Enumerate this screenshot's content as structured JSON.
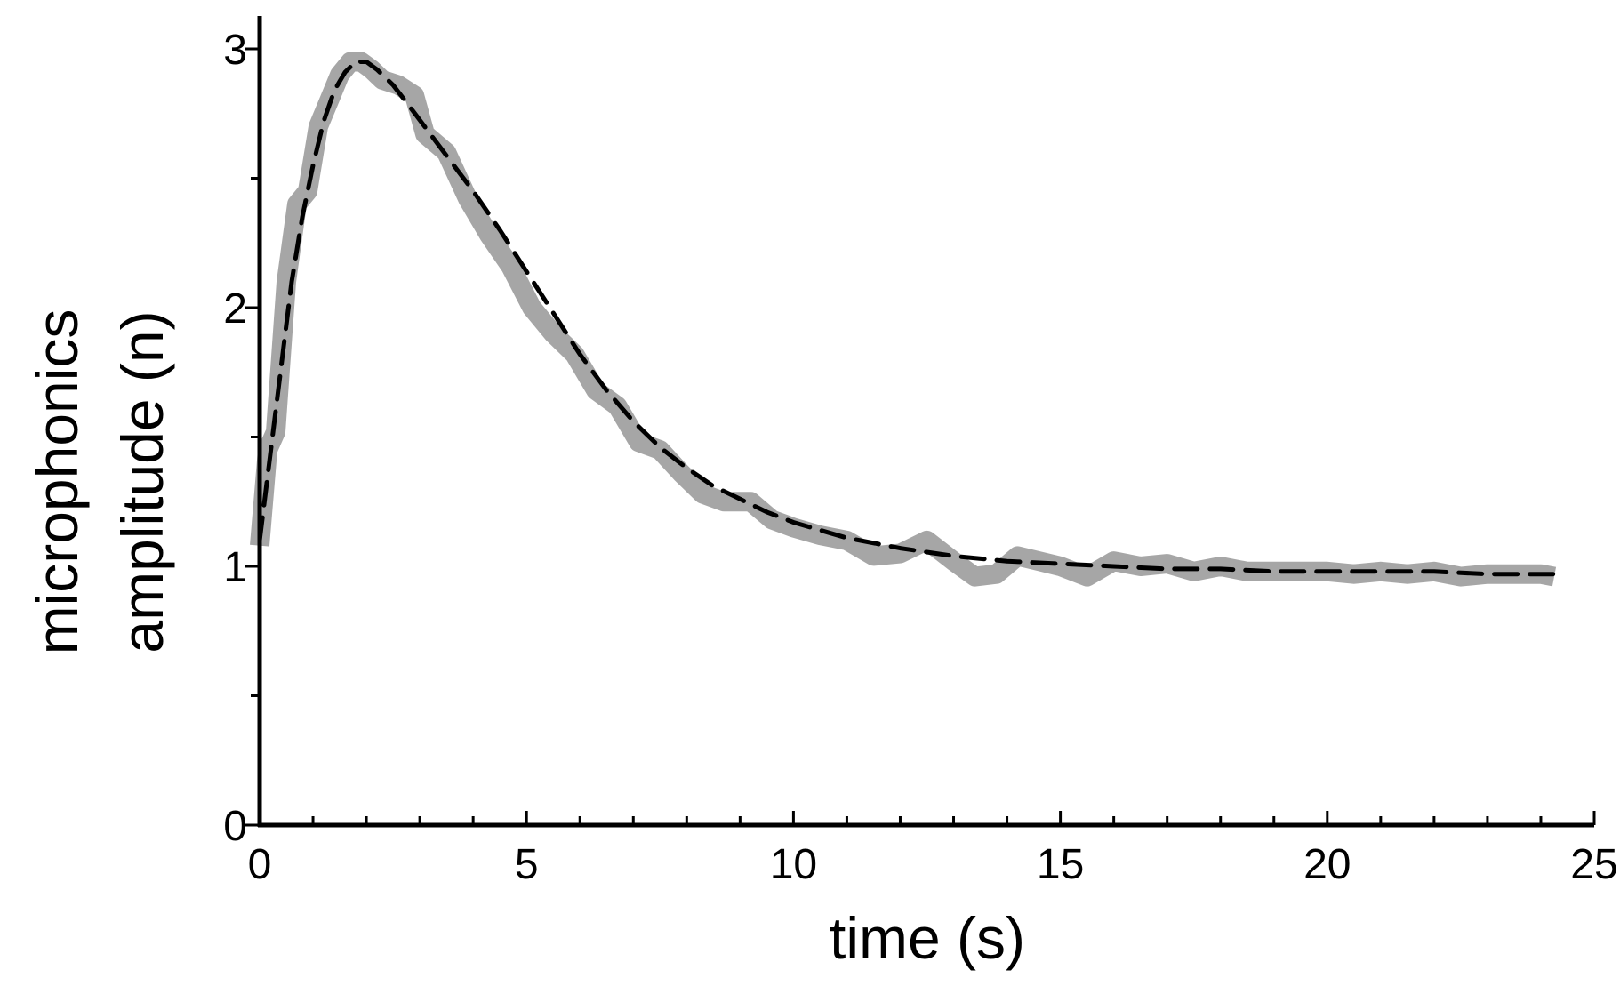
{
  "chart_data": {
    "type": "line",
    "xlabel": "time (s)",
    "ylabel_line1": "microphonics",
    "ylabel_line2": "amplitude (n)",
    "xlim": [
      0,
      25
    ],
    "ylim": [
      0,
      3.1
    ],
    "x_ticks": [
      0,
      5,
      10,
      15,
      20,
      25
    ],
    "y_ticks": [
      0,
      1,
      2,
      3
    ],
    "x_minor_step": 1,
    "y_minor_step": 0.5,
    "grid": false,
    "legend": "none",
    "series": [
      {
        "style": "thick-gray",
        "color": "#a6a6a6",
        "x": [
          0,
          0.15,
          0.3,
          0.5,
          0.7,
          0.9,
          1.1,
          1.3,
          1.5,
          1.7,
          1.9,
          2.1,
          2.3,
          2.6,
          2.9,
          3.1,
          3.5,
          3.9,
          4.3,
          4.7,
          5.1,
          5.5,
          5.9,
          6.3,
          6.7,
          7.1,
          7.5,
          7.9,
          8.3,
          8.7,
          9.2,
          9.6,
          10.0,
          10.5,
          11.0,
          11.5,
          12.0,
          12.5,
          13.0,
          13.4,
          13.8,
          14.2,
          14.6,
          15.0,
          15.5,
          16.0,
          16.5,
          17.0,
          17.5,
          18.0,
          18.5,
          19.0,
          19.5,
          20.0,
          20.5,
          21.0,
          21.5,
          22.0,
          22.5,
          23.0,
          23.5,
          24.0,
          24.25
        ],
        "y": [
          1.08,
          1.45,
          1.52,
          2.1,
          2.4,
          2.45,
          2.7,
          2.8,
          2.9,
          2.95,
          2.95,
          2.92,
          2.88,
          2.86,
          2.82,
          2.67,
          2.6,
          2.42,
          2.28,
          2.16,
          2.0,
          1.9,
          1.82,
          1.68,
          1.62,
          1.48,
          1.45,
          1.36,
          1.28,
          1.25,
          1.25,
          1.18,
          1.15,
          1.12,
          1.1,
          1.04,
          1.05,
          1.1,
          1.02,
          0.96,
          0.97,
          1.04,
          1.02,
          1.0,
          0.96,
          1.02,
          1.0,
          1.01,
          0.98,
          1.0,
          0.98,
          0.98,
          0.98,
          0.98,
          0.97,
          0.98,
          0.97,
          0.98,
          0.96,
          0.97,
          0.97,
          0.97,
          0.96
        ]
      },
      {
        "style": "black-dashed",
        "color": "#000000",
        "x": [
          0,
          0.15,
          0.3,
          0.45,
          0.6,
          0.8,
          1.0,
          1.2,
          1.4,
          1.6,
          1.8,
          2.0,
          2.2,
          2.5,
          2.8,
          3.2,
          3.6,
          4.0,
          4.5,
          5.0,
          5.5,
          6.0,
          6.5,
          7.0,
          7.5,
          8.0,
          8.5,
          9.0,
          9.5,
          10.0,
          10.5,
          11.0,
          11.5,
          12.0,
          13.0,
          14.0,
          15.0,
          16.0,
          17.0,
          18.0,
          19.0,
          20.0,
          21.0,
          22.0,
          23.0,
          24.0,
          24.25
        ],
        "y": [
          1.1,
          1.35,
          1.6,
          1.85,
          2.1,
          2.35,
          2.55,
          2.72,
          2.84,
          2.91,
          2.95,
          2.95,
          2.92,
          2.86,
          2.78,
          2.67,
          2.56,
          2.45,
          2.3,
          2.14,
          1.98,
          1.82,
          1.68,
          1.56,
          1.46,
          1.38,
          1.31,
          1.26,
          1.21,
          1.17,
          1.14,
          1.11,
          1.09,
          1.07,
          1.04,
          1.02,
          1.01,
          1.0,
          0.99,
          0.99,
          0.98,
          0.98,
          0.98,
          0.98,
          0.97,
          0.97,
          0.97
        ]
      }
    ]
  }
}
